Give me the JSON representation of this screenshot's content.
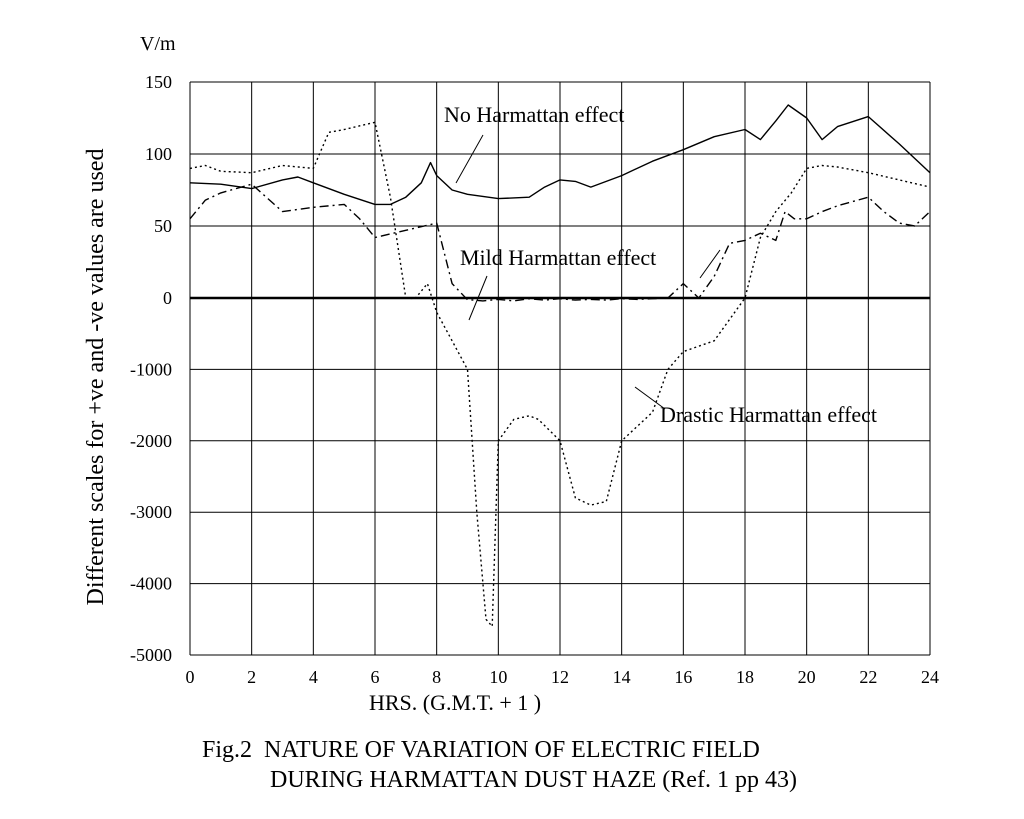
{
  "chart_data": {
    "type": "line",
    "unit_label": "V/m",
    "ylabel": "Different scales for +ve and  -ve values are used",
    "xlabel": "HRS. (G.M.T. + 1 )",
    "caption": [
      "Fig.2  NATURE OF VARIATION OF ELECTRIC FIELD",
      "DURING HARMATTAN DUST HAZE (Ref. 1 pp 43)"
    ],
    "xlim": [
      0,
      24
    ],
    "x_ticks": [
      0,
      2,
      4,
      6,
      8,
      10,
      12,
      14,
      16,
      18,
      20,
      22,
      24
    ],
    "y_ticks_positive": [
      0,
      50,
      100,
      150
    ],
    "y_ticks_negative": [
      0,
      -1000,
      -2000,
      -3000,
      -4000,
      -5000
    ],
    "y_tick_labels": [
      "150",
      "100",
      "50",
      "0",
      "-1000",
      "-2000",
      "-3000",
      "-4000",
      "-5000"
    ],
    "y_scale_note": "positive range 0 to 150 and negative range 0 to -5000 drawn with different scales",
    "grid": true,
    "annotations": [
      {
        "text": "No Harmattan effect",
        "series": "No Harmattan effect"
      },
      {
        "text": "Mild Harmattan effect",
        "series": "Mild Harmattan effect"
      },
      {
        "text": "Drastic Harmattan effect",
        "series": "Drastic Harmattan effect"
      }
    ],
    "series": [
      {
        "name": "No Harmattan effect",
        "style": "solid",
        "x": [
          0,
          1,
          2,
          3,
          3.5,
          4,
          5,
          6,
          6.5,
          7,
          7.5,
          7.8,
          8,
          8.5,
          9,
          10,
          11,
          11.5,
          12,
          12.5,
          13,
          14,
          15,
          16,
          17,
          18,
          18.5,
          19,
          19.4,
          20,
          20.5,
          21,
          22,
          23,
          24
        ],
        "values": [
          80,
          79,
          76,
          82,
          84,
          80,
          72,
          65,
          65,
          70,
          80,
          94,
          85,
          75,
          72,
          69,
          70,
          77,
          82,
          81,
          77,
          85,
          95,
          103,
          112,
          117,
          110,
          123,
          134,
          125,
          110,
          119,
          126,
          107,
          87
        ]
      },
      {
        "name": "Mild Harmattan effect",
        "style": "dash",
        "x": [
          0,
          0.5,
          1,
          2,
          3,
          4,
          5,
          5.5,
          6,
          7,
          8,
          8.5,
          9,
          9.2,
          9.5,
          10,
          10.5,
          11,
          11.5,
          12,
          12.5,
          13,
          13.5,
          14,
          14.5,
          15,
          15.5,
          16,
          16.5,
          17,
          17.5,
          18,
          18.5,
          19,
          19.3,
          19.6,
          20,
          20.5,
          21,
          22,
          22.5,
          23,
          23.5,
          24
        ],
        "values": [
          55,
          68,
          73,
          79,
          60,
          63,
          65,
          55,
          42,
          47,
          52,
          10,
          -25,
          -30,
          -40,
          -20,
          -40,
          -10,
          -30,
          -10,
          -30,
          -20,
          -30,
          -10,
          -20,
          -10,
          0,
          10,
          0,
          15,
          38,
          40,
          45,
          40,
          60,
          55,
          55,
          60,
          64,
          70,
          60,
          52,
          50,
          60
        ]
      },
      {
        "name": "Drastic Harmattan effect",
        "style": "dot",
        "x": [
          0,
          0.5,
          1,
          2,
          3,
          4,
          4.5,
          5,
          6,
          6.5,
          7,
          7.3,
          7.7,
          8,
          8.5,
          9,
          9.3,
          9.6,
          9.8,
          10,
          10.5,
          11,
          11.3,
          12,
          12.5,
          13,
          13.5,
          14,
          14.5,
          15,
          15.5,
          16,
          17,
          17.5,
          18,
          18.5,
          19,
          19.5,
          20,
          20.5,
          21,
          22,
          23,
          24
        ],
        "values": [
          90,
          92,
          88,
          87,
          92,
          90,
          115,
          117,
          122,
          70,
          0,
          -10,
          10,
          -200,
          -600,
          -1000,
          -3000,
          -4500,
          -4600,
          -2000,
          -1700,
          -1650,
          -1700,
          -2000,
          -2800,
          -2900,
          -2850,
          -2000,
          -1800,
          -1600,
          -1000,
          -750,
          -600,
          -300,
          0,
          42,
          60,
          73,
          90,
          92,
          91,
          87,
          82,
          77
        ]
      }
    ]
  }
}
